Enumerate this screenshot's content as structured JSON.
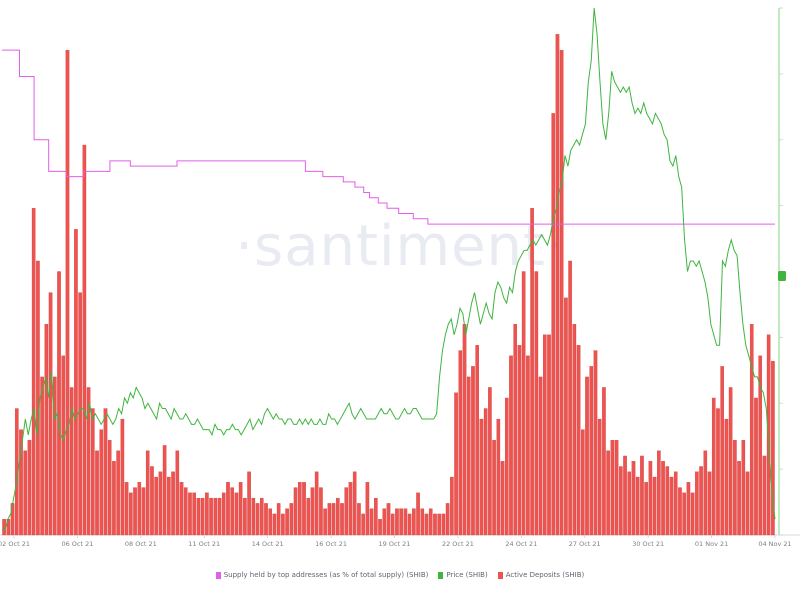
{
  "watermark": "·santiment·",
  "colors": {
    "supply": "#e25fe8",
    "price": "#3fb53f",
    "deposits": "#ef5350",
    "deposits_stroke": "#c23b38"
  },
  "chart_data": {
    "type": "bar",
    "x_ticks": [
      "02 Oct 21",
      "06 Oct 21",
      "08 Oct 21",
      "11 Oct 21",
      "14 Oct 21",
      "16 Oct 21",
      "19 Oct 21",
      "22 Oct 21",
      "24 Oct 21",
      "27 Oct 21",
      "30 Oct 21",
      "01 Nov 21",
      "04 Nov 21"
    ],
    "legend": [
      {
        "name": "Supply held by top addresses (as % of total supply) (SHIB)",
        "color": "#e25fe8"
      },
      {
        "name": "Price (SHIB)",
        "color": "#3fb53f"
      },
      {
        "name": "Active Deposits (SHIB)",
        "color": "#ef5350"
      }
    ],
    "series": [
      {
        "name": "Active Deposits (SHIB)",
        "type": "bar",
        "values": [
          3,
          3,
          6,
          24,
          20,
          16,
          18,
          62,
          52,
          30,
          40,
          46,
          30,
          50,
          34,
          92,
          28,
          58,
          46,
          74,
          28,
          24,
          16,
          20,
          24,
          18,
          14,
          16,
          22,
          10,
          8,
          9,
          10,
          9,
          16,
          13,
          11,
          12,
          17,
          11,
          12,
          16,
          10,
          9,
          8,
          8,
          7,
          7,
          8,
          7,
          7,
          7,
          8,
          10,
          9,
          8,
          10,
          7,
          12,
          7,
          6,
          7,
          6,
          5,
          4,
          6,
          4,
          5,
          6,
          9,
          10,
          10,
          7,
          9,
          12,
          9,
          5,
          6,
          6,
          7,
          6,
          9,
          10,
          12,
          6,
          4,
          10,
          5,
          7,
          3,
          5,
          6,
          4,
          5,
          5,
          5,
          4,
          5,
          8,
          5,
          4,
          5,
          4,
          4,
          4,
          6,
          11,
          27,
          35,
          40,
          30,
          32,
          36,
          22,
          24,
          28,
          18,
          22,
          14,
          26,
          34,
          40,
          36,
          50,
          34,
          62,
          50,
          30,
          38,
          38,
          80,
          95,
          92,
          45,
          52,
          40,
          36,
          20,
          30,
          32,
          35,
          22,
          28,
          16,
          18,
          18,
          13,
          15,
          12,
          14,
          11,
          15,
          10,
          14,
          11,
          16,
          14,
          13,
          11,
          12,
          9,
          8,
          10,
          8,
          12,
          13,
          16,
          12,
          26,
          24,
          32,
          22,
          28,
          18,
          14,
          18,
          12,
          40,
          26,
          34,
          15,
          38,
          33
        ]
      },
      {
        "name": "Price (SHIB)",
        "type": "line",
        "values": [
          1,
          1,
          3,
          4,
          7,
          10,
          14,
          18,
          22,
          19,
          22,
          24,
          19,
          26,
          28,
          30,
          26,
          31,
          22,
          23,
          19,
          18,
          20,
          21,
          24,
          22,
          23,
          24,
          24,
          22,
          25,
          22,
          23,
          22,
          21,
          22,
          23,
          22,
          21,
          22,
          24,
          23,
          26,
          25,
          27,
          26,
          28,
          27,
          26,
          24,
          25,
          24,
          23,
          22,
          25,
          24,
          24,
          23,
          22,
          24,
          23,
          22,
          22,
          23,
          22,
          21,
          21,
          22,
          21,
          20,
          20,
          20,
          19,
          21,
          20,
          20,
          19,
          20,
          20,
          21,
          20,
          20,
          19,
          20,
          21,
          22,
          20,
          21,
          22,
          21,
          23,
          24,
          23,
          22,
          23,
          22,
          22,
          21,
          22,
          22,
          21,
          21,
          22,
          21,
          22,
          21,
          22,
          21,
          21,
          22,
          21,
          21,
          23,
          22,
          22,
          21,
          22,
          23,
          24,
          25,
          23,
          22,
          23,
          24,
          23,
          22,
          22,
          22,
          22,
          23,
          24,
          23,
          23,
          24,
          23,
          22,
          22,
          23,
          24,
          23,
          23,
          24,
          24,
          23,
          22,
          22,
          22,
          22,
          22,
          23,
          30,
          35,
          38,
          40,
          41,
          38,
          40,
          43,
          42,
          38,
          41,
          44,
          46,
          43,
          40,
          42,
          44,
          42,
          41,
          46,
          48,
          47,
          45,
          44,
          47,
          46,
          50,
          52,
          53,
          54,
          54,
          55,
          56,
          55,
          56,
          57,
          56,
          55,
          57,
          60,
          62,
          65,
          67,
          72,
          70,
          73,
          74,
          75,
          74,
          76,
          78,
          86,
          90,
          100,
          95,
          86,
          78,
          75,
          80,
          88,
          86,
          85,
          84,
          85,
          84,
          85,
          82,
          80,
          81,
          80,
          82,
          80,
          79,
          78,
          80,
          79,
          78,
          76,
          75,
          71,
          70,
          72,
          68,
          66,
          56,
          50,
          52,
          52,
          51,
          52,
          50,
          48,
          45,
          40,
          38,
          36,
          36,
          52,
          51,
          54,
          56,
          54,
          53,
          46,
          40,
          36,
          34,
          32,
          30,
          30,
          28,
          27,
          24,
          16,
          8,
          3
        ]
      },
      {
        "name": "Supply held by top addresses (as % of total supply) (SHIB)",
        "type": "line",
        "values": [
          92,
          92,
          92,
          92,
          92,
          92,
          87,
          87,
          87,
          87,
          87,
          75,
          75,
          75,
          75,
          75,
          69,
          69,
          69,
          69,
          69,
          69,
          68,
          68,
          68,
          68,
          68,
          68,
          69,
          69,
          69,
          69,
          69,
          69,
          69,
          69,
          69,
          71,
          71,
          71,
          71,
          71,
          71,
          71,
          70,
          70,
          70,
          70,
          70,
          70,
          70,
          70,
          70,
          70,
          70,
          70,
          70,
          70,
          70,
          70,
          71,
          71,
          71,
          71,
          71,
          71,
          71,
          71,
          71,
          71,
          71,
          71,
          71,
          71,
          71,
          71,
          71,
          71,
          71,
          71,
          71,
          71,
          71,
          71,
          71,
          71,
          71,
          71,
          71,
          71,
          71,
          71,
          71,
          71,
          71,
          71,
          71,
          71,
          71,
          71,
          71,
          71,
          71,
          71,
          69,
          69,
          69,
          69,
          69,
          69,
          68,
          68,
          68,
          68,
          68,
          68,
          68,
          67,
          67,
          67,
          67,
          66,
          66,
          66,
          65,
          65,
          64,
          64,
          64,
          63,
          63,
          63,
          62,
          62,
          62,
          62,
          61,
          61,
          61,
          61,
          61,
          60,
          60,
          60,
          60,
          60,
          59,
          59,
          59,
          59,
          59,
          59,
          59,
          59,
          59,
          59,
          59,
          59,
          59,
          59,
          59,
          59,
          59,
          59,
          59,
          59,
          59,
          59,
          59,
          59,
          59,
          59,
          59,
          59,
          59,
          59,
          59,
          59,
          59,
          59,
          59,
          59,
          59,
          59,
          59,
          59,
          59,
          59,
          59,
          59,
          59,
          59,
          59,
          59,
          59,
          59,
          59,
          59,
          59,
          59,
          59,
          59,
          59,
          59,
          59,
          59,
          59,
          59,
          59,
          59,
          59,
          59,
          59,
          59,
          59,
          59,
          59,
          59,
          59,
          59,
          59,
          59,
          59,
          59,
          59,
          59,
          59,
          59,
          59,
          59,
          59,
          59,
          59,
          59,
          59,
          59,
          59,
          59,
          59,
          59,
          59,
          59,
          59,
          59,
          59,
          59,
          59,
          59,
          59,
          59,
          59,
          59,
          59,
          59,
          59,
          59,
          59,
          59,
          59,
          59,
          59,
          59,
          59,
          59,
          59,
          59
        ]
      }
    ],
    "grid": false,
    "legend_position": "bottom"
  }
}
